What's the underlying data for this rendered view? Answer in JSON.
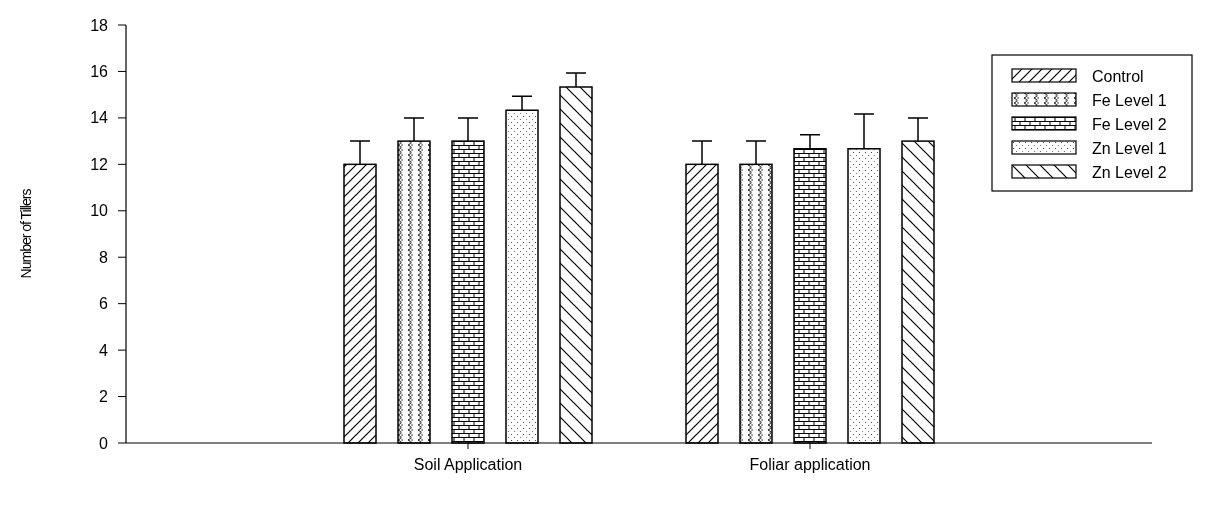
{
  "chart_data": {
    "type": "bar",
    "ylabel": "Number of Tillers",
    "categories": [
      "Soil Application",
      "Foliar application"
    ],
    "series": [
      {
        "name": "Control",
        "color": "#000000",
        "values": [
          12,
          12
        ],
        "errors": [
          1,
          1
        ]
      },
      {
        "name": "Fe Level 1",
        "color": "#000000",
        "values": [
          13,
          12
        ],
        "errors": [
          1,
          1
        ]
      },
      {
        "name": "Fe Level 2",
        "color": "#000000",
        "values": [
          13,
          12.67
        ],
        "errors": [
          1,
          0.6
        ]
      },
      {
        "name": "Zn Level 1",
        "color": "#000000",
        "values": [
          14.33,
          12.67
        ],
        "errors": [
          0.6,
          1.5
        ]
      },
      {
        "name": "Zn Level 2",
        "color": "#000000",
        "values": [
          15.33,
          13
        ],
        "errors": [
          0.6,
          1
        ]
      }
    ],
    "ylim": [
      0,
      18
    ],
    "yticks": [
      0,
      2,
      4,
      6,
      8,
      10,
      12,
      14,
      16,
      18
    ],
    "grid": false,
    "legend": "top right"
  }
}
